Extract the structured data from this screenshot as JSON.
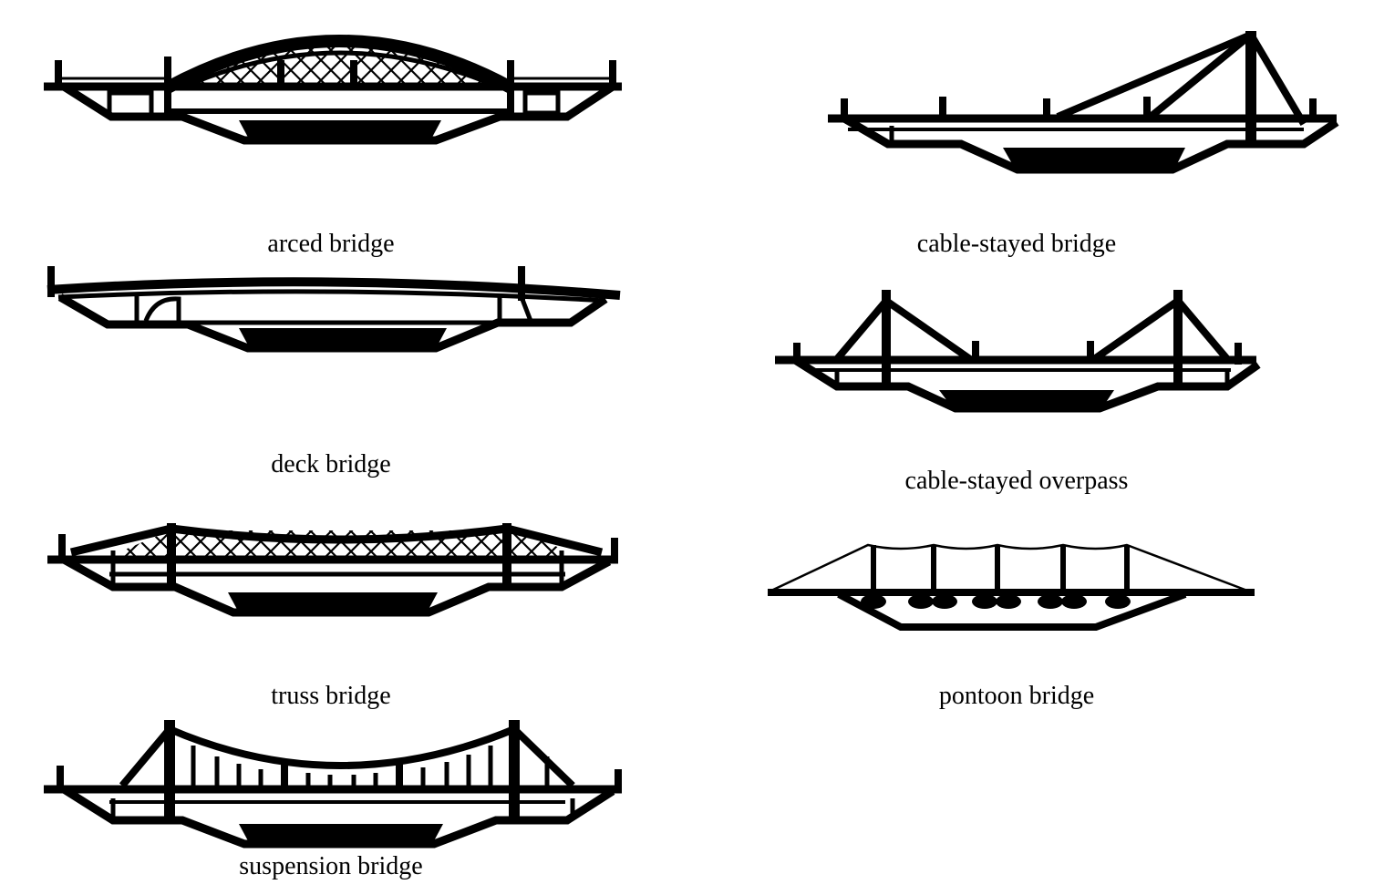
{
  "diagram": {
    "ink_color": "#000000",
    "background_color": "#ffffff",
    "bridges": [
      {
        "id": "arced",
        "label": "arced bridge"
      },
      {
        "id": "deck",
        "label": "deck bridge"
      },
      {
        "id": "truss",
        "label": "truss bridge"
      },
      {
        "id": "suspension",
        "label": "suspension bridge"
      },
      {
        "id": "cable-stayed",
        "label": "cable-stayed bridge"
      },
      {
        "id": "cable-stayed-overpass",
        "label": "cable-stayed overpass"
      },
      {
        "id": "pontoon",
        "label": "pontoon bridge"
      }
    ]
  }
}
